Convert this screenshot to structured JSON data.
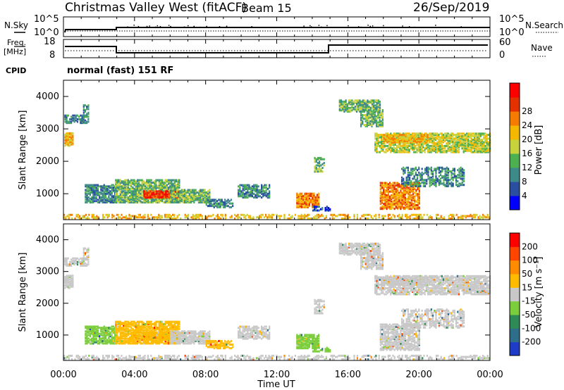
{
  "header": {
    "station": "Christmas Valley West (fitACF)",
    "beam": "Beam 15",
    "date": "26/Sep/2019"
  },
  "noise_panel": {
    "left_label": "N.Sky",
    "right_label": "N.Search",
    "ticks_left": [
      "10^5",
      "10^0"
    ],
    "ticks_right": [
      "10^5",
      "10^0"
    ]
  },
  "freq_panel": {
    "left_label_line1": "Freq.",
    "left_label_line2": "[MHz]",
    "right_label": "Nave",
    "ticks_left": [
      "18",
      "8"
    ],
    "ticks_right": [
      "60",
      "0"
    ]
  },
  "cpid": {
    "label": "CPID",
    "value": "normal (fast) 151 RF"
  },
  "chart_data": [
    {
      "type": "heatmap",
      "name": "power",
      "ylabel": "Slant Range [km]",
      "y_ticks": [
        "1000",
        "2000",
        "3000",
        "4000"
      ],
      "ylim": [
        200,
        4500
      ],
      "colorbar_label": "Power [dB]",
      "colorbar_ticks": [
        "4",
        "8",
        "12",
        "16",
        "20",
        "24",
        "28"
      ],
      "colors": [
        "#0000ff",
        "#2a4fa0",
        "#3d8a8a",
        "#4caf50",
        "#c8d23c",
        "#f5b800",
        "#f57c00",
        "#e53000",
        "#ff0000"
      ]
    },
    {
      "type": "heatmap",
      "name": "velocity",
      "ylabel": "Slant Range [km]",
      "y_ticks": [
        "1000",
        "2000",
        "3000",
        "4000"
      ],
      "ylim": [
        200,
        4500
      ],
      "colorbar_label": "Velocity [m s⁻¹]",
      "colorbar_ticks": [
        "200",
        "100",
        "50",
        "15",
        "-15",
        "-50",
        "-100",
        "-200"
      ],
      "colors": [
        "#1f3cc8",
        "#2d6f8a",
        "#2e8b57",
        "#7ccd3c",
        "#c8c8c8",
        "#ffbb00",
        "#ff8c00",
        "#ff4500",
        "#ff0000"
      ]
    }
  ],
  "x_axis": {
    "ticks": [
      "00:00",
      "04:00",
      "08:00",
      "12:00",
      "16:00",
      "20:00",
      "00:00"
    ],
    "label": "Time UT"
  }
}
